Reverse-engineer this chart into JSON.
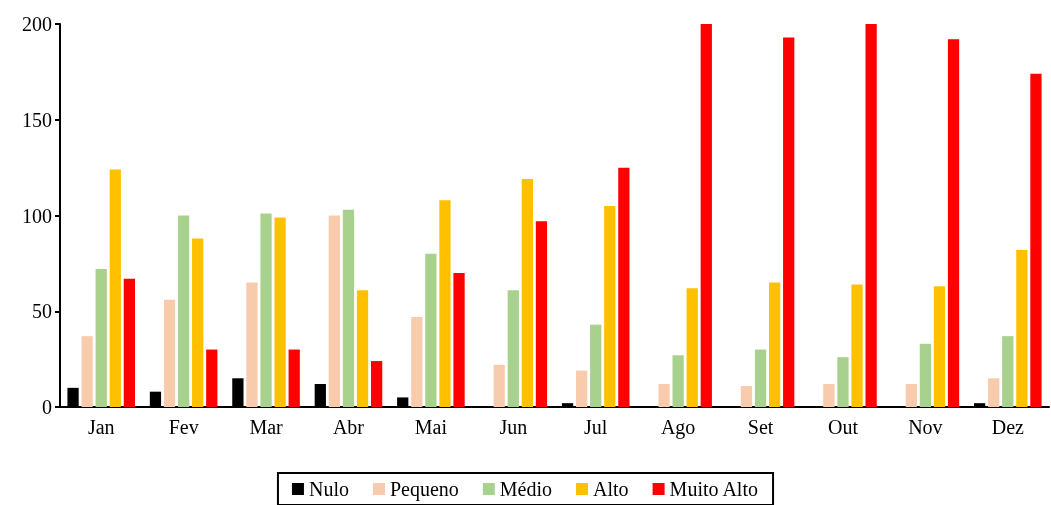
{
  "chart_data": {
    "type": "bar",
    "categories": [
      "Jan",
      "Fev",
      "Mar",
      "Abr",
      "Mai",
      "Jun",
      "Jul",
      "Ago",
      "Set",
      "Out",
      "Nov",
      "Dez"
    ],
    "series": [
      {
        "name": "Nulo",
        "color": "#000000",
        "values": [
          10,
          8,
          15,
          12,
          5,
          0,
          2,
          0,
          0,
          0,
          0,
          2
        ]
      },
      {
        "name": "Pequeno",
        "color": "#f8cbad",
        "values": [
          37,
          56,
          65,
          100,
          47,
          22,
          19,
          12,
          11,
          12,
          12,
          15
        ]
      },
      {
        "name": "Médio",
        "color": "#a9d18e",
        "values": [
          72,
          100,
          101,
          103,
          80,
          61,
          43,
          27,
          30,
          26,
          33,
          37
        ]
      },
      {
        "name": "Alto",
        "color": "#ffc000",
        "values": [
          124,
          88,
          99,
          61,
          108,
          119,
          105,
          62,
          65,
          64,
          63,
          82
        ]
      },
      {
        "name": "Muito Alto",
        "color": "#ff0000",
        "values": [
          67,
          30,
          30,
          24,
          70,
          97,
          125,
          200,
          193,
          200,
          192,
          174
        ]
      }
    ],
    "ylim": [
      0,
      200
    ],
    "yticks": [
      0,
      50,
      100,
      150,
      200
    ],
    "grid": false,
    "legend": "bottom"
  }
}
